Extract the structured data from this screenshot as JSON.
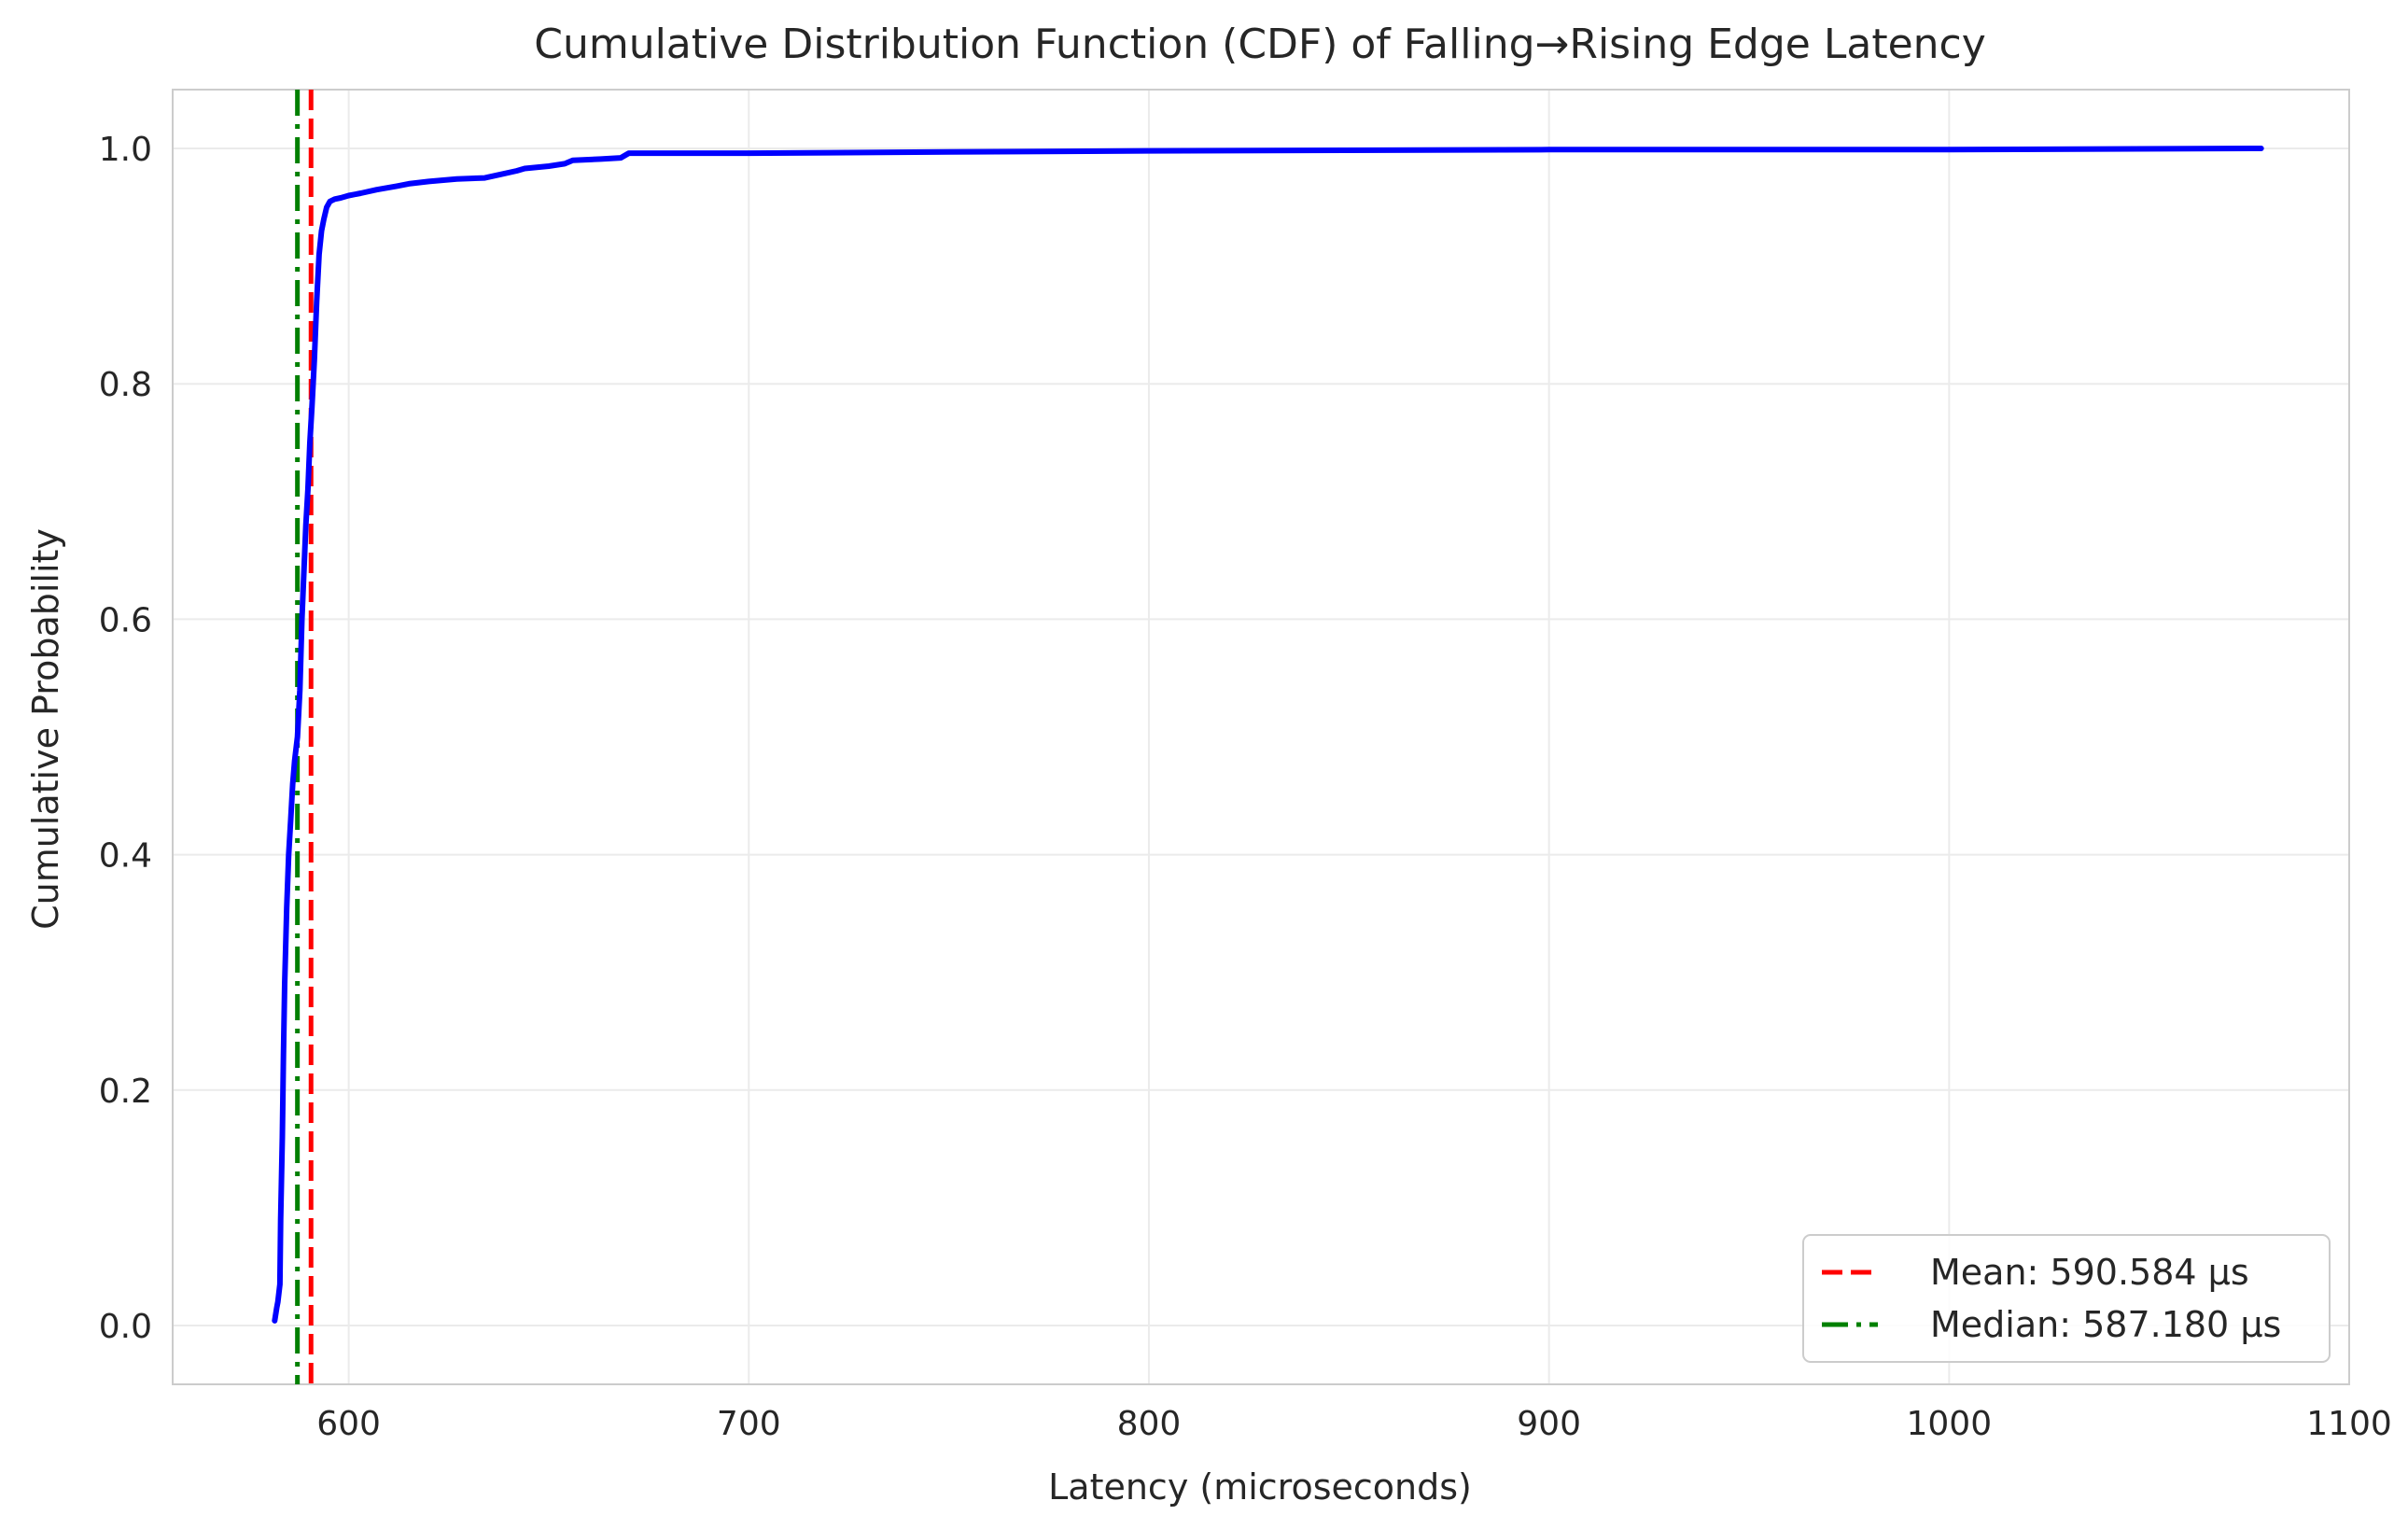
{
  "chart_data": {
    "type": "line",
    "title": "Cumulative Distribution Function (CDF) of Falling→Rising Edge Latency",
    "xlabel": "Latency (microseconds)",
    "ylabel": "Cumulative Probability",
    "xlim": [
      556,
      1100
    ],
    "ylim": [
      -0.05,
      1.05
    ],
    "xticks": [
      600,
      700,
      800,
      900,
      1000,
      1100
    ],
    "yticks": [
      0.0,
      0.2,
      0.4,
      0.6,
      0.8,
      1.0
    ],
    "xtick_labels": [
      "600",
      "700",
      "800",
      "900",
      "1000",
      "1100"
    ],
    "ytick_labels": [
      "0.0",
      "0.2",
      "0.4",
      "0.6",
      "0.8",
      "1.0"
    ],
    "grid": true,
    "legend_position": "bottom-right",
    "series": [
      {
        "color": "#0000ff",
        "x": [
          581.5,
          582.0,
          582.3,
          582.8,
          583.0,
          583.4,
          583.7,
          584.0,
          584.5,
          585.0,
          585.5,
          586.0,
          586.5,
          587.18,
          587.8,
          588.3,
          588.8,
          589.3,
          589.8,
          590.3,
          590.8,
          591.4,
          592.0,
          592.6,
          593.2,
          593.8,
          594.5,
          595.3,
          596.5,
          598.0,
          600.0,
          603.0,
          607.0,
          612.0,
          615.0,
          620.0,
          627.0,
          634.0,
          638.0,
          642.0,
          644.0,
          650.0,
          654.0,
          656.0,
          663.0,
          668.0,
          670.0,
          680.0,
          700.0,
          750.0,
          800.0,
          900.0,
          1000.0,
          1078.0
        ],
        "y": [
          0.004,
          0.015,
          0.02,
          0.035,
          0.09,
          0.16,
          0.23,
          0.29,
          0.355,
          0.4,
          0.43,
          0.46,
          0.48,
          0.5,
          0.54,
          0.6,
          0.64,
          0.68,
          0.71,
          0.75,
          0.78,
          0.82,
          0.87,
          0.91,
          0.93,
          0.94,
          0.95,
          0.955,
          0.957,
          0.958,
          0.96,
          0.962,
          0.965,
          0.968,
          0.97,
          0.972,
          0.974,
          0.975,
          0.978,
          0.981,
          0.983,
          0.985,
          0.987,
          0.99,
          0.991,
          0.992,
          0.996,
          0.996,
          0.996,
          0.997,
          0.998,
          0.999,
          0.999,
          1.0
        ]
      }
    ],
    "reference_lines": [
      {
        "name": "Mean: 590.584 µs",
        "x": 590.584,
        "color": "#ff0000",
        "style": "dashed"
      },
      {
        "name": "Median: 587.180 µs",
        "x": 587.18,
        "color": "#008000",
        "style": "dashdot"
      }
    ]
  }
}
